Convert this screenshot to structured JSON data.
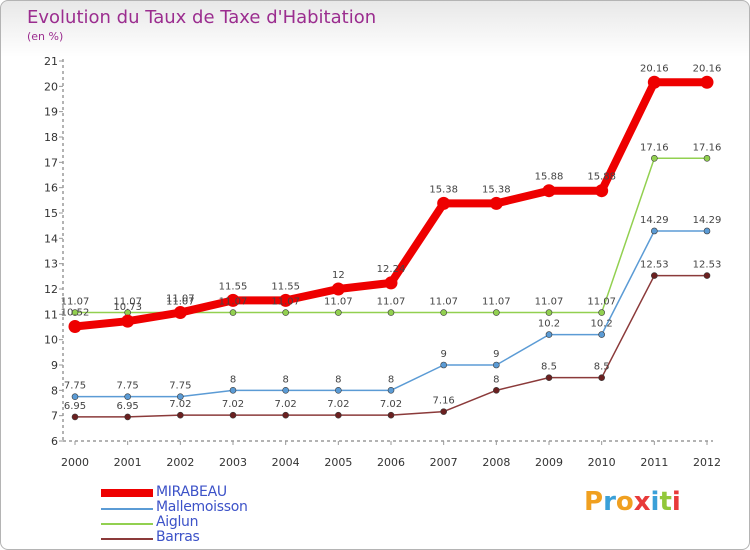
{
  "chart_data": {
    "type": "line",
    "title": "Evolution du Taux de Taxe d'Habitation",
    "subtitle": "(en %)",
    "x": [
      "2000",
      "2001",
      "2002",
      "2003",
      "2004",
      "2005",
      "2006",
      "2007",
      "2008",
      "2009",
      "2010",
      "2011",
      "2012"
    ],
    "ylim": [
      6,
      21
    ],
    "yticks": [
      6,
      7,
      8,
      9,
      10,
      11,
      12,
      13,
      14,
      15,
      16,
      17,
      18,
      19,
      20,
      21
    ],
    "grid": false,
    "legend_position": "bottom-left",
    "series": [
      {
        "name": "MIRABEAU",
        "color": "#ee0000",
        "values": [
          10.52,
          10.73,
          11.07,
          11.55,
          11.55,
          12,
          12.24,
          15.38,
          15.38,
          15.88,
          15.88,
          20.16,
          20.16
        ],
        "labels": [
          "10.52",
          "10.73",
          "11.07",
          "11.55",
          "11.55",
          "12",
          "12.24",
          "15.38",
          "15.38",
          "15.88",
          "15.88",
          "20.16",
          "20.16"
        ]
      },
      {
        "name": "Mallemoisson",
        "color": "#5b9bd5",
        "values": [
          7.75,
          7.75,
          7.75,
          8,
          8,
          8,
          8,
          9,
          9,
          10.2,
          10.2,
          14.29,
          14.29
        ],
        "labels": [
          "7.75",
          "7.75",
          "7.75",
          "8",
          "8",
          "8",
          "8",
          "9",
          "9",
          "10.2",
          "10.2",
          "14.29",
          "14.29"
        ]
      },
      {
        "name": "Aiglun",
        "color": "#92d050",
        "values": [
          11.07,
          11.07,
          11.07,
          11.07,
          11.07,
          11.07,
          11.07,
          11.07,
          11.07,
          11.07,
          11.07,
          17.16,
          17.16
        ],
        "labels": [
          "11.07",
          "11.07",
          "11.07",
          "11.07",
          "11.07",
          "11.07",
          "11.07",
          "11.07",
          "11.07",
          "11.07",
          "11.07",
          "17.16",
          "17.16"
        ]
      },
      {
        "name": "Barras",
        "color": "#8b3a3a",
        "values": [
          6.95,
          6.95,
          7.02,
          7.02,
          7.02,
          7.02,
          7.02,
          7.16,
          8,
          8.5,
          8.5,
          12.53,
          12.53
        ],
        "labels": [
          "6.95",
          "6.95",
          "7.02",
          "7.02",
          "7.02",
          "7.02",
          "7.02",
          "7.16",
          "8",
          "8.5",
          "8.5",
          "12.53",
          "12.53"
        ]
      }
    ]
  },
  "logo": {
    "text": "Proxiti"
  }
}
